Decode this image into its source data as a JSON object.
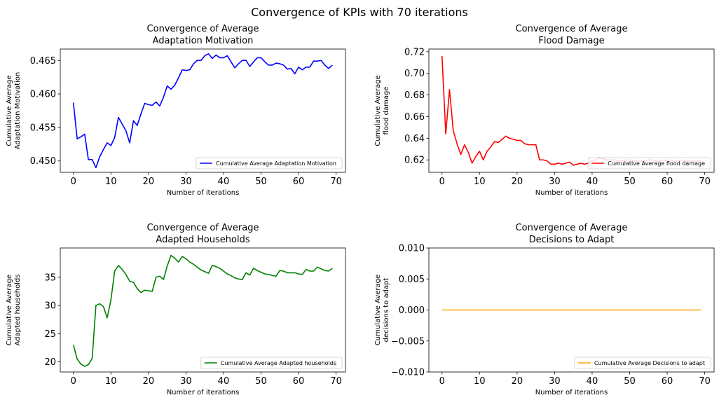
{
  "figure": {
    "suptitle": "Convergence of KPIs with 70 iterations"
  },
  "chart_data": [
    {
      "type": "line",
      "title_line1": "Convergence of Average",
      "title_line2": "Adaptation Motivation",
      "xlabel": "Number of iterations",
      "ylabel_line1": "Cumulative Average",
      "ylabel_line2": "Adaptation Motivation",
      "xlim": [
        -3.5,
        72.5
      ],
      "ylim": [
        0.4483,
        0.4667
      ],
      "xticks": [
        0,
        10,
        20,
        30,
        40,
        50,
        60,
        70
      ],
      "yticks": [
        0.45,
        0.455,
        0.46,
        0.465
      ],
      "ytick_labels": [
        "0.450",
        "0.455",
        "0.460",
        "0.465"
      ],
      "legend_placement": "lower-right",
      "color": "#0000ff",
      "series": [
        {
          "name": "Cumulative Average Adaptation Motivation",
          "x": [
            0,
            1,
            2,
            3,
            4,
            5,
            6,
            7,
            8,
            9,
            10,
            11,
            12,
            13,
            14,
            15,
            16,
            17,
            18,
            19,
            20,
            21,
            22,
            23,
            24,
            25,
            26,
            27,
            28,
            29,
            30,
            31,
            32,
            33,
            34,
            35,
            36,
            37,
            38,
            39,
            40,
            41,
            42,
            43,
            44,
            45,
            46,
            47,
            48,
            49,
            50,
            51,
            52,
            53,
            54,
            55,
            56,
            57,
            58,
            59,
            60,
            61,
            62,
            63,
            64,
            65,
            66,
            67,
            68,
            69
          ],
          "values": [
            0.4587,
            0.4533,
            0.4536,
            0.454,
            0.4502,
            0.4502,
            0.449,
            0.4506,
            0.4517,
            0.4527,
            0.4523,
            0.4535,
            0.4565,
            0.4555,
            0.4545,
            0.4527,
            0.456,
            0.4553,
            0.457,
            0.4586,
            0.4584,
            0.4583,
            0.4588,
            0.4582,
            0.4595,
            0.4612,
            0.4607,
            0.4613,
            0.4624,
            0.4636,
            0.4635,
            0.4636,
            0.4645,
            0.465,
            0.465,
            0.4657,
            0.466,
            0.4653,
            0.4658,
            0.4654,
            0.4654,
            0.4657,
            0.4648,
            0.4639,
            0.4645,
            0.465,
            0.465,
            0.4641,
            0.4648,
            0.4654,
            0.4654,
            0.4648,
            0.4643,
            0.4643,
            0.4646,
            0.4645,
            0.4643,
            0.4637,
            0.4638,
            0.463,
            0.464,
            0.4636,
            0.464,
            0.464,
            0.4649,
            0.4649,
            0.465,
            0.4643,
            0.4638,
            0.4643
          ]
        }
      ]
    },
    {
      "type": "line",
      "title_line1": "Convergence of Average",
      "title_line2": "Flood Damage",
      "xlabel": "Number of iterations",
      "ylabel_line1": "Cumulative Average",
      "ylabel_line2": "flood damage",
      "xlim": [
        -3.5,
        72.5
      ],
      "ylim": [
        0.6085,
        0.7225
      ],
      "xticks": [
        0,
        10,
        20,
        30,
        40,
        50,
        60,
        70
      ],
      "yticks": [
        0.62,
        0.64,
        0.66,
        0.68,
        0.7,
        0.72
      ],
      "ytick_labels": [
        "0.62",
        "0.64",
        "0.66",
        "0.68",
        "0.70",
        "0.72"
      ],
      "legend_placement": "lower-right",
      "color": "#ff0000",
      "series": [
        {
          "name": "Cumulative Average flood damage",
          "x": [
            0,
            1,
            2,
            3,
            4,
            5,
            6,
            7,
            8,
            9,
            10,
            11,
            12,
            13,
            14,
            15,
            16,
            17,
            18,
            19,
            20,
            21,
            22,
            23,
            24,
            25,
            26,
            27,
            28,
            29,
            30,
            31,
            32,
            33,
            34,
            35,
            36,
            37,
            38,
            39,
            40,
            41,
            42,
            43,
            44,
            45,
            46,
            47,
            48,
            49,
            50,
            51,
            52,
            53,
            54,
            55,
            56,
            57,
            58,
            59,
            60,
            61,
            62,
            63,
            64,
            65,
            66,
            67,
            68,
            69
          ],
          "values": [
            0.716,
            0.644,
            0.685,
            0.647,
            0.635,
            0.625,
            0.634,
            0.627,
            0.617,
            0.623,
            0.628,
            0.62,
            0.628,
            0.632,
            0.637,
            0.636,
            0.639,
            0.642,
            0.64,
            0.639,
            0.638,
            0.638,
            0.635,
            0.634,
            0.634,
            0.634,
            0.62,
            0.62,
            0.619,
            0.616,
            0.616,
            0.617,
            0.616,
            0.617,
            0.618,
            0.615,
            0.616,
            0.617,
            0.616,
            0.617,
            0.619,
            0.62,
            0.622,
            0.621,
            0.62,
            0.62,
            0.62,
            0.619,
            0.619,
            0.62,
            0.62,
            0.619,
            0.619,
            0.619,
            0.619,
            0.62,
            0.62,
            0.619,
            0.619,
            0.62,
            0.619,
            0.62,
            0.619,
            0.619,
            0.62,
            0.619,
            0.619,
            0.619,
            0.619,
            0.619
          ]
        }
      ]
    },
    {
      "type": "line",
      "title_line1": "Convergence of Average",
      "title_line2": "Adapted Households",
      "xlabel": "Number of iterations",
      "ylabel_line1": "Cumulative Average",
      "ylabel_line2": "Adapted households",
      "xlim": [
        -3.5,
        72.5
      ],
      "ylim": [
        18.2,
        40.2
      ],
      "xticks": [
        0,
        10,
        20,
        30,
        40,
        50,
        60,
        70
      ],
      "yticks": [
        20,
        25,
        30,
        35
      ],
      "ytick_labels": [
        "20",
        "25",
        "30",
        "35"
      ],
      "legend_placement": "lower-right",
      "color": "#008000",
      "series": [
        {
          "name": "Cumulative Average Adapted households",
          "x": [
            0,
            1,
            2,
            3,
            4,
            5,
            6,
            7,
            8,
            9,
            10,
            11,
            12,
            13,
            14,
            15,
            16,
            17,
            18,
            19,
            20,
            21,
            22,
            23,
            24,
            25,
            26,
            27,
            28,
            29,
            30,
            31,
            32,
            33,
            34,
            35,
            36,
            37,
            38,
            39,
            40,
            41,
            42,
            43,
            44,
            45,
            46,
            47,
            48,
            49,
            50,
            51,
            52,
            53,
            54,
            55,
            56,
            57,
            58,
            59,
            60,
            61,
            62,
            63,
            64,
            65,
            66,
            67,
            68,
            69
          ],
          "values": [
            23.0,
            20.5,
            19.6,
            19.2,
            19.5,
            20.6,
            30.0,
            30.3,
            29.8,
            27.8,
            31.0,
            36.1,
            37.1,
            36.4,
            35.5,
            34.3,
            34.1,
            33.0,
            32.3,
            32.7,
            32.6,
            32.5,
            35.0,
            35.2,
            34.6,
            37.0,
            38.9,
            38.4,
            37.7,
            38.7,
            38.3,
            37.7,
            37.3,
            36.8,
            36.3,
            36.0,
            35.7,
            37.1,
            36.9,
            36.6,
            36.1,
            35.6,
            35.3,
            34.9,
            34.7,
            34.6,
            35.8,
            35.4,
            36.6,
            36.2,
            35.9,
            35.6,
            35.5,
            35.3,
            35.2,
            36.2,
            36.1,
            35.8,
            35.8,
            35.8,
            35.6,
            35.5,
            36.4,
            36.1,
            36.1,
            36.8,
            36.5,
            36.2,
            36.1,
            36.6
          ]
        }
      ]
    },
    {
      "type": "line",
      "title_line1": "Convergence of Average",
      "title_line2": "Decisions to Adapt",
      "xlabel": "Number of iterations",
      "ylabel_line1": "Cumulative Average",
      "ylabel_line2": "decisions to adapt",
      "xlim": [
        -3.5,
        72.5
      ],
      "ylim": [
        -0.01,
        0.01
      ],
      "xticks": [
        0,
        10,
        20,
        30,
        40,
        50,
        60,
        70
      ],
      "yticks": [
        -0.01,
        -0.005,
        0.0,
        0.005,
        0.01
      ],
      "ytick_labels": [
        "−0.010",
        "−0.005",
        "0.000",
        "0.005",
        "0.010"
      ],
      "legend_placement": "lower-right",
      "color": "#ffa500",
      "series": [
        {
          "name": "Cumulative Average Decisions to adapt",
          "x": [
            0,
            1,
            2,
            3,
            4,
            5,
            6,
            7,
            8,
            9,
            10,
            11,
            12,
            13,
            14,
            15,
            16,
            17,
            18,
            19,
            20,
            21,
            22,
            23,
            24,
            25,
            26,
            27,
            28,
            29,
            30,
            31,
            32,
            33,
            34,
            35,
            36,
            37,
            38,
            39,
            40,
            41,
            42,
            43,
            44,
            45,
            46,
            47,
            48,
            49,
            50,
            51,
            52,
            53,
            54,
            55,
            56,
            57,
            58,
            59,
            60,
            61,
            62,
            63,
            64,
            65,
            66,
            67,
            68,
            69
          ],
          "values": [
            0,
            0,
            0,
            0,
            0,
            0,
            0,
            0,
            0,
            0,
            0,
            0,
            0,
            0,
            0,
            0,
            0,
            0,
            0,
            0,
            0,
            0,
            0,
            0,
            0,
            0,
            0,
            0,
            0,
            0,
            0,
            0,
            0,
            0,
            0,
            0,
            0,
            0,
            0,
            0,
            0,
            0,
            0,
            0,
            0,
            0,
            0,
            0,
            0,
            0,
            0,
            0,
            0,
            0,
            0,
            0,
            0,
            0,
            0,
            0,
            0,
            0,
            0,
            0,
            0,
            0,
            0,
            0,
            0,
            0
          ]
        }
      ]
    }
  ]
}
